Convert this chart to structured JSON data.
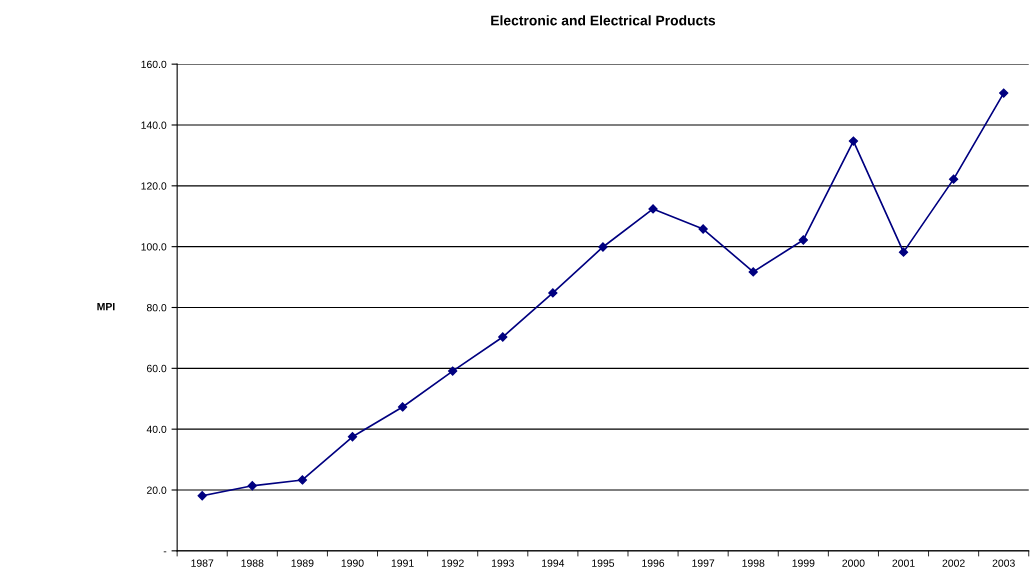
{
  "chart_data": {
    "type": "line",
    "title": "Electronic and Electrical Products",
    "ylabel": "MPI",
    "categories": [
      "1987",
      "1988",
      "1989",
      "1990",
      "1991",
      "1992",
      "1993",
      "1994",
      "1995",
      "1996",
      "1997",
      "1998",
      "1999",
      "2000",
      "2001",
      "2002",
      "2003"
    ],
    "series": [
      {
        "color": "#000080",
        "values": [
          18.1,
          21.4,
          23.3,
          37.5,
          47.3,
          59.1,
          70.3,
          84.8,
          99.9,
          112.4,
          105.8,
          91.7,
          102.2,
          134.7,
          98.2,
          122.2,
          150.5
        ]
      }
    ],
    "ylim": [
      0,
      160
    ],
    "yticks": [
      {
        "value": 0,
        "label": "-"
      },
      {
        "value": 20,
        "label": "20.0"
      },
      {
        "value": 40,
        "label": "40.0"
      },
      {
        "value": 60,
        "label": "60.0"
      },
      {
        "value": 80,
        "label": "80.0"
      },
      {
        "value": 100,
        "label": "100.0"
      },
      {
        "value": 120,
        "label": "120.0"
      },
      {
        "value": 140,
        "label": "140.0"
      },
      {
        "value": 160,
        "label": "160.0"
      }
    ],
    "grid": "y",
    "marker": "diamond",
    "line_style": "solid",
    "legend": false
  }
}
